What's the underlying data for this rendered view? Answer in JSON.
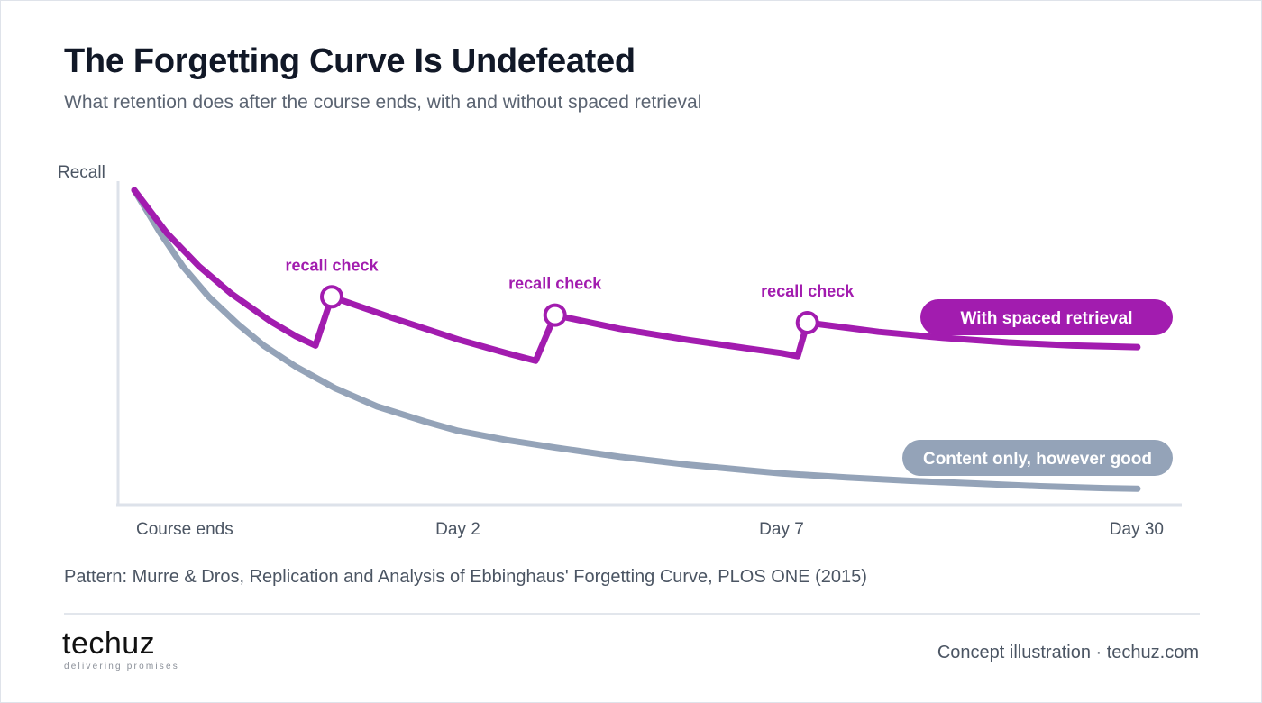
{
  "header": {
    "title": "The Forgetting Curve Is Undefeated",
    "subtitle": "What retention does after the course ends, with and without spaced retrieval"
  },
  "chart_data": {
    "type": "line",
    "title": "The Forgetting Curve Is Undefeated",
    "subtitle": "What retention does after the course ends, with and without spaced retrieval",
    "ylabel": "Recall",
    "xlabel": "",
    "ylim": [
      0,
      100
    ],
    "y_tick_labels": false,
    "grid": false,
    "x_ticks": [
      {
        "label": "Course ends",
        "x": 0
      },
      {
        "label": "Day 2",
        "x": 1
      },
      {
        "label": "Day 7",
        "x": 2
      },
      {
        "label": "Day 30",
        "x": 3
      }
    ],
    "series": [
      {
        "name": "Content only, however good",
        "color": "#94a3b8",
        "points": [
          [
            0.0,
            100
          ],
          [
            0.08,
            86
          ],
          [
            0.15,
            75
          ],
          [
            0.23,
            65
          ],
          [
            0.32,
            56
          ],
          [
            0.4,
            49
          ],
          [
            0.5,
            42
          ],
          [
            0.62,
            35
          ],
          [
            0.75,
            29
          ],
          [
            0.9,
            24
          ],
          [
            1.0,
            21
          ],
          [
            1.15,
            18
          ],
          [
            1.3,
            15.5
          ],
          [
            1.5,
            12.5
          ],
          [
            1.7,
            10
          ],
          [
            1.9,
            8
          ],
          [
            2.0,
            7
          ],
          [
            2.2,
            5.7
          ],
          [
            2.4,
            4.6
          ],
          [
            2.6,
            3.7
          ],
          [
            2.8,
            2.8
          ],
          [
            3.0,
            2.2
          ],
          [
            3.1,
            2
          ]
        ]
      },
      {
        "name": "With spaced retrieval",
        "color": "#a21caf",
        "points": [
          [
            0.0,
            100
          ],
          [
            0.1,
            86
          ],
          [
            0.2,
            75
          ],
          [
            0.3,
            66
          ],
          [
            0.42,
            57
          ],
          [
            0.5,
            52
          ],
          [
            0.56,
            49
          ],
          [
            0.56,
            49
          ],
          [
            0.61,
            65
          ],
          [
            0.8,
            58
          ],
          [
            1.0,
            51
          ],
          [
            1.15,
            46.5
          ],
          [
            1.24,
            44
          ],
          [
            1.24,
            44
          ],
          [
            1.3,
            59
          ],
          [
            1.5,
            54.5
          ],
          [
            1.7,
            51
          ],
          [
            1.9,
            48
          ],
          [
            2.0,
            46.5
          ],
          [
            2.05,
            45.5
          ],
          [
            2.05,
            45.5
          ],
          [
            2.08,
            56.5
          ],
          [
            2.3,
            53.5
          ],
          [
            2.5,
            51.5
          ],
          [
            2.7,
            50
          ],
          [
            2.9,
            49
          ],
          [
            3.1,
            48.5
          ]
        ]
      }
    ],
    "markers": [
      {
        "label": "recall check",
        "x": 0.61,
        "y": 65
      },
      {
        "label": "recall check",
        "x": 1.3,
        "y": 59
      },
      {
        "label": "recall check",
        "x": 2.08,
        "y": 56.5
      }
    ],
    "legend": {
      "placement": "right-inline",
      "items": [
        {
          "label": "With spaced retrieval",
          "color": "#a21caf"
        },
        {
          "label": "Content only, however good",
          "color": "#94a3b8"
        }
      ]
    },
    "axis_color": "#dde2ea"
  },
  "footer": {
    "source": "Pattern: Murre & Dros, Replication and Analysis of Ebbinghaus' Forgetting Curve, PLOS ONE (2015)",
    "brand_name": "techuz",
    "brand_tagline": "delivering promises",
    "credit": "Concept illustration · techuz.com"
  }
}
